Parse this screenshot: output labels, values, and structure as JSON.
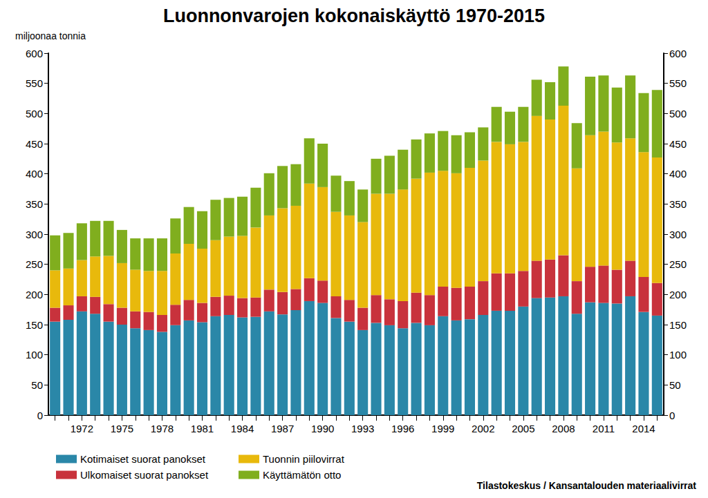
{
  "chart_data": {
    "type": "bar",
    "title": "Luonnonvarojen kokonaiskäyttö 1970-2015",
    "ylabel": "miljoonaa tonnia",
    "annotations": [
      "Tilastokeskus / Kansantalouden materiaalivirrat"
    ],
    "categories": [
      null,
      null,
      "1972",
      null,
      null,
      "1975",
      null,
      null,
      "1978",
      null,
      null,
      "1981",
      null,
      null,
      "1984",
      null,
      null,
      "1987",
      null,
      null,
      "1990",
      null,
      null,
      "1993",
      null,
      null,
      "1996",
      null,
      null,
      "1999",
      null,
      null,
      "2002",
      null,
      null,
      "2005",
      null,
      null,
      "2008",
      null,
      null,
      "2011",
      null,
      null,
      "2014",
      null
    ],
    "series": [
      {
        "name": "Kotimaiset suorat panokset",
        "color": "#2a87a8",
        "values": [
          155,
          158,
          172,
          168,
          155,
          150,
          144,
          141,
          138,
          149,
          157,
          154,
          164,
          166,
          162,
          163,
          172,
          167,
          174,
          189,
          186,
          161,
          155,
          141,
          153,
          149,
          144,
          153,
          149,
          164,
          157,
          159,
          166,
          173,
          173,
          180,
          194,
          195,
          197,
          168,
          187,
          186,
          185,
          197,
          171,
          165
        ]
      },
      {
        "name": "Ulkomaiset suorat panokset",
        "color": "#c8323c",
        "values": [
          23,
          24,
          25,
          28,
          29,
          28,
          28,
          30,
          28,
          34,
          34,
          32,
          32,
          32,
          32,
          32,
          36,
          37,
          35,
          38,
          37,
          36,
          36,
          37,
          46,
          43,
          45,
          50,
          50,
          49,
          54,
          54,
          56,
          62,
          62,
          59,
          62,
          63,
          68,
          54,
          59,
          62,
          56,
          59,
          58,
          54
        ]
      },
      {
        "name": "Tuonnin piilovirrat",
        "color": "#e8b90c",
        "values": [
          62,
          61,
          60,
          67,
          80,
          74,
          69,
          68,
          73,
          85,
          93,
          90,
          94,
          98,
          103,
          116,
          123,
          139,
          138,
          157,
          155,
          140,
          140,
          142,
          168,
          175,
          185,
          189,
          203,
          192,
          190,
          197,
          200,
          218,
          214,
          214,
          240,
          232,
          248,
          187,
          218,
          222,
          211,
          203,
          207,
          208
        ]
      },
      {
        "name": "Käyttämätön otto",
        "color": "#80ae1e",
        "values": [
          58,
          59,
          61,
          59,
          58,
          55,
          52,
          54,
          54,
          58,
          61,
          62,
          67,
          64,
          65,
          66,
          70,
          70,
          69,
          75,
          72,
          60,
          57,
          54,
          58,
          63,
          66,
          65,
          65,
          66,
          63,
          59,
          55,
          58,
          54,
          58,
          60,
          62,
          65,
          75,
          97,
          93,
          91,
          104,
          98,
          112
        ]
      }
    ],
    "ylim": [
      0,
      600
    ],
    "yticks": [
      0,
      50,
      100,
      150,
      200,
      250,
      300,
      350,
      400,
      450,
      500,
      550,
      600
    ],
    "y2lim": [
      0,
      600
    ],
    "y2ticks": [
      0,
      50,
      100,
      150,
      200,
      250,
      300,
      350,
      400,
      450,
      500,
      550,
      600
    ],
    "stacked": true,
    "grid": false,
    "legend": "bottom-left",
    "data_labels": false
  }
}
